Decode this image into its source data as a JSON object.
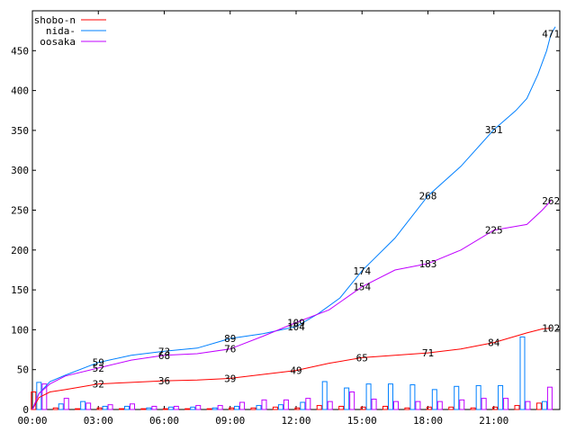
{
  "chart_data": {
    "type": "line",
    "title": "",
    "xlabel": "",
    "ylabel": "",
    "xlim": [
      0,
      24
    ],
    "ylim": [
      0,
      500
    ],
    "x_ticks": [
      {
        "value": 0,
        "label": "00:00"
      },
      {
        "value": 3,
        "label": "03:00"
      },
      {
        "value": 6,
        "label": "06:00"
      },
      {
        "value": 9,
        "label": "09:00"
      },
      {
        "value": 12,
        "label": "12:00"
      },
      {
        "value": 15,
        "label": "15:00"
      },
      {
        "value": 18,
        "label": "18:00"
      },
      {
        "value": 21,
        "label": "21:00"
      }
    ],
    "y_ticks": [
      0,
      50,
      100,
      150,
      200,
      250,
      300,
      350,
      400,
      450
    ],
    "legend_position": "top-left",
    "series": [
      {
        "name": "shobo-n",
        "color": "#ff0000",
        "points": [
          [
            0,
            0
          ],
          [
            0.3,
            15
          ],
          [
            0.8,
            22
          ],
          [
            1.5,
            25
          ],
          [
            3,
            32
          ],
          [
            4.5,
            34
          ],
          [
            6,
            36
          ],
          [
            7.5,
            37
          ],
          [
            9,
            39
          ],
          [
            10.5,
            44
          ],
          [
            12,
            49
          ],
          [
            13.5,
            58
          ],
          [
            15,
            65
          ],
          [
            16.5,
            68
          ],
          [
            18,
            71
          ],
          [
            19.5,
            76
          ],
          [
            21,
            84
          ],
          [
            22.5,
            96
          ],
          [
            23.2,
            101
          ],
          [
            23.6,
            102
          ]
        ],
        "labels": [
          [
            3,
            32
          ],
          [
            6,
            36
          ],
          [
            9,
            39
          ],
          [
            12,
            49
          ],
          [
            15,
            65
          ],
          [
            18,
            71
          ],
          [
            21,
            84
          ],
          [
            23.6,
            102
          ]
        ]
      },
      {
        "name": "nida-",
        "color": "#0080ff",
        "points": [
          [
            0,
            0
          ],
          [
            0.3,
            20
          ],
          [
            0.8,
            35
          ],
          [
            1.5,
            43
          ],
          [
            3,
            59
          ],
          [
            4.5,
            68
          ],
          [
            6,
            73
          ],
          [
            7.5,
            77
          ],
          [
            9,
            89
          ],
          [
            10.5,
            95
          ],
          [
            12,
            104
          ],
          [
            13,
            120
          ],
          [
            14,
            140
          ],
          [
            15,
            174
          ],
          [
            16.5,
            215
          ],
          [
            18,
            268
          ],
          [
            19.5,
            305
          ],
          [
            21,
            351
          ],
          [
            22,
            375
          ],
          [
            22.5,
            390
          ],
          [
            23,
            420
          ],
          [
            23.4,
            450
          ],
          [
            23.6,
            471
          ],
          [
            23.8,
            480
          ]
        ],
        "labels": [
          [
            3,
            59
          ],
          [
            6,
            73
          ],
          [
            9,
            89
          ],
          [
            12,
            104
          ],
          [
            15,
            174
          ],
          [
            18,
            268
          ],
          [
            21,
            351
          ],
          [
            23.6,
            471
          ]
        ]
      },
      {
        "name": "oosaka",
        "color": "#c000ff",
        "points": [
          [
            0,
            0
          ],
          [
            0.3,
            20
          ],
          [
            0.8,
            32
          ],
          [
            1.5,
            42
          ],
          [
            3,
            52
          ],
          [
            4.5,
            62
          ],
          [
            6,
            68
          ],
          [
            7.5,
            70
          ],
          [
            9,
            76
          ],
          [
            10.5,
            92
          ],
          [
            12,
            109
          ],
          [
            13.5,
            125
          ],
          [
            15,
            154
          ],
          [
            16.5,
            175
          ],
          [
            18,
            183
          ],
          [
            19.5,
            200
          ],
          [
            21,
            225
          ],
          [
            22.5,
            232
          ],
          [
            23.2,
            250
          ],
          [
            23.6,
            262
          ]
        ],
        "labels": [
          [
            3,
            52
          ],
          [
            6,
            68
          ],
          [
            9,
            76
          ],
          [
            12,
            109
          ],
          [
            15,
            154
          ],
          [
            18,
            183
          ],
          [
            21,
            225
          ],
          [
            23.6,
            262
          ]
        ]
      }
    ],
    "bars": {
      "x": [
        0.3,
        1.3,
        2.3,
        3.3,
        4.3,
        5.3,
        6.3,
        7.3,
        8.3,
        9.3,
        10.3,
        11.3,
        12.3,
        13.3,
        14.3,
        15.3,
        16.3,
        17.3,
        18.3,
        19.3,
        20.3,
        21.3,
        22.3,
        23.3
      ],
      "shobo-n": [
        22,
        2,
        1,
        2,
        1,
        1,
        1,
        1,
        1,
        2,
        2,
        3,
        2,
        5,
        4,
        3,
        4,
        2,
        3,
        3,
        2,
        3,
        5,
        8
      ],
      "nida-": [
        34,
        7,
        10,
        4,
        4,
        2,
        3,
        3,
        2,
        4,
        5,
        6,
        9,
        35,
        27,
        32,
        32,
        31,
        25,
        29,
        30,
        30,
        91,
        10
      ],
      "oosaka": [
        32,
        14,
        8,
        6,
        7,
        4,
        4,
        5,
        5,
        9,
        12,
        12,
        14,
        10,
        22,
        13,
        10,
        10,
        10,
        12,
        14,
        14,
        10,
        28
      ]
    }
  }
}
